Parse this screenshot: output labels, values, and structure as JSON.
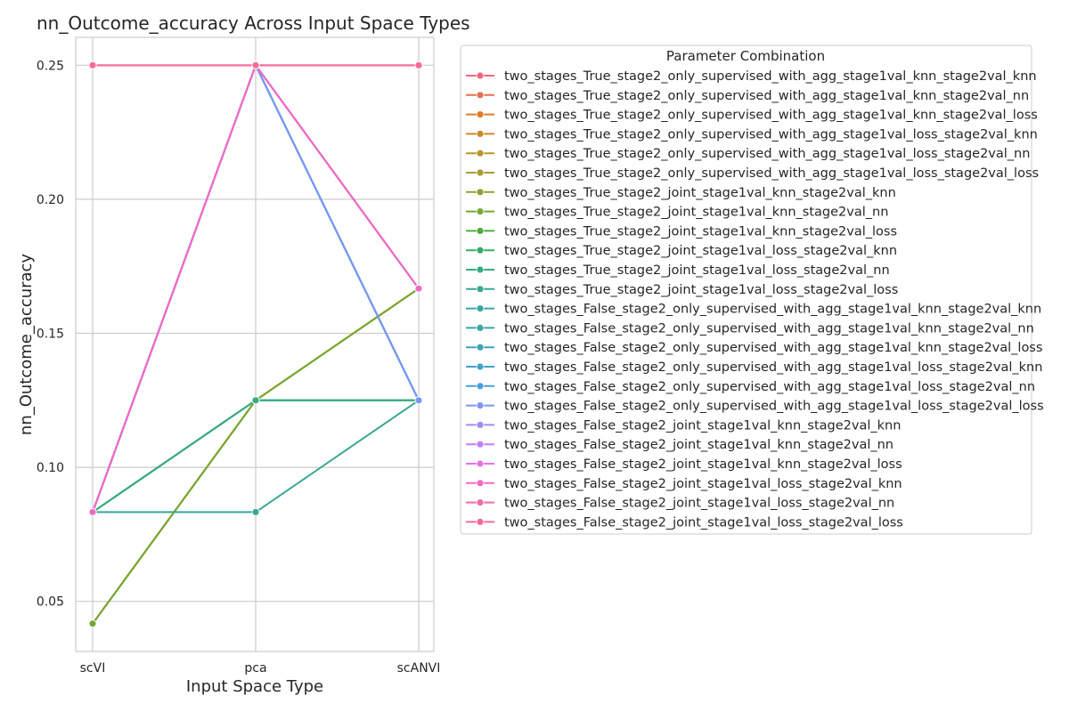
{
  "chart_data": {
    "type": "line",
    "title": "nn_Outcome_accuracy Across Input Space Types",
    "xlabel": "Input Space Type",
    "ylabel": "nn_Outcome_accuracy",
    "categories": [
      "scVI",
      "pca",
      "scANVI"
    ],
    "yticks": [
      "0.05",
      "0.10",
      "0.15",
      "0.20",
      "0.25"
    ],
    "ylim": [
      0.0313,
      0.2604
    ],
    "grid": true,
    "legend": {
      "title": "Parameter Combination",
      "placement": "right"
    },
    "series": [
      {
        "name": "two_stages_True_stage2_only_supervised_with_agg_stage1val_knn_stage2val_knn",
        "color": "#f0677e",
        "values": [
          0.0833,
          0.25,
          0.1667
        ]
      },
      {
        "name": "two_stages_True_stage2_only_supervised_with_agg_stage1val_knn_stage2val_nn",
        "color": "#ea6e51",
        "values": [
          0.0833,
          0.25,
          0.1667
        ]
      },
      {
        "name": "two_stages_True_stage2_only_supervised_with_agg_stage1val_knn_stage2val_loss",
        "color": "#dc7c2b",
        "values": [
          0.0833,
          0.25,
          0.1667
        ]
      },
      {
        "name": "two_stages_True_stage2_only_supervised_with_agg_stage1val_loss_stage2val_knn",
        "color": "#c98a2a",
        "values": [
          0.0417,
          0.125,
          0.1667
        ]
      },
      {
        "name": "two_stages_True_stage2_only_supervised_with_agg_stage1val_loss_stage2val_nn",
        "color": "#b7952d",
        "values": [
          0.0417,
          0.125,
          0.1667
        ]
      },
      {
        "name": "two_stages_True_stage2_only_supervised_with_agg_stage1val_loss_stage2val_loss",
        "color": "#a59c32",
        "values": [
          0.0417,
          0.125,
          0.1667
        ]
      },
      {
        "name": "two_stages_True_stage2_joint_stage1val_knn_stage2val_knn",
        "color": "#90a231",
        "values": [
          0.0417,
          0.125,
          0.1667
        ]
      },
      {
        "name": "two_stages_True_stage2_joint_stage1val_knn_stage2val_nn",
        "color": "#76a833",
        "values": [
          0.0417,
          0.125,
          0.1667
        ]
      },
      {
        "name": "two_stages_True_stage2_joint_stage1val_knn_stage2val_loss",
        "color": "#4ead3b",
        "values": [
          0.0833,
          0.125,
          0.125
        ]
      },
      {
        "name": "two_stages_True_stage2_joint_stage1val_loss_stage2val_knn",
        "color": "#35ac6a",
        "values": [
          0.0833,
          0.125,
          0.125
        ]
      },
      {
        "name": "two_stages_True_stage2_joint_stage1val_loss_stage2val_nn",
        "color": "#36aa85",
        "values": [
          0.0833,
          0.125,
          0.125
        ]
      },
      {
        "name": "two_stages_True_stage2_joint_stage1val_loss_stage2val_loss",
        "color": "#38a895",
        "values": [
          0.0833,
          0.0833,
          0.125
        ]
      },
      {
        "name": "two_stages_False_stage2_only_supervised_with_agg_stage1val_knn_stage2val_knn",
        "color": "#39a7a2",
        "values": [
          0.0833,
          0.25,
          0.125
        ]
      },
      {
        "name": "two_stages_False_stage2_only_supervised_with_agg_stage1val_knn_stage2val_nn",
        "color": "#3ba5ad",
        "values": [
          0.0833,
          0.25,
          0.125
        ]
      },
      {
        "name": "two_stages_False_stage2_only_supervised_with_agg_stage1val_knn_stage2val_loss",
        "color": "#3da4ba",
        "values": [
          0.0833,
          0.25,
          0.125
        ]
      },
      {
        "name": "two_stages_False_stage2_only_supervised_with_agg_stage1val_loss_stage2val_knn",
        "color": "#41a2c9",
        "values": [
          0.0833,
          0.25,
          0.125
        ]
      },
      {
        "name": "two_stages_False_stage2_only_supervised_with_agg_stage1val_loss_stage2val_nn",
        "color": "#4a9fde",
        "values": [
          0.0833,
          0.25,
          0.125
        ]
      },
      {
        "name": "two_stages_False_stage2_only_supervised_with_agg_stage1val_loss_stage2val_loss",
        "color": "#7a97f2",
        "values": [
          0.0833,
          0.25,
          0.125
        ]
      },
      {
        "name": "two_stages_False_stage2_joint_stage1val_knn_stage2val_knn",
        "color": "#a48cf4",
        "values": [
          0.0833,
          0.25,
          0.1667
        ]
      },
      {
        "name": "two_stages_False_stage2_joint_stage1val_knn_stage2val_nn",
        "color": "#c47ff3",
        "values": [
          0.0833,
          0.25,
          0.1667
        ]
      },
      {
        "name": "two_stages_False_stage2_joint_stage1val_knn_stage2val_loss",
        "color": "#e571e6",
        "values": [
          0.0833,
          0.25,
          0.1667
        ]
      },
      {
        "name": "two_stages_False_stage2_joint_stage1val_loss_stage2val_knn",
        "color": "#f06ac6",
        "values": [
          0.0833,
          0.25,
          0.1667
        ]
      },
      {
        "name": "two_stages_False_stage2_joint_stage1val_loss_stage2val_nn",
        "color": "#f26bac",
        "values": [
          0.25,
          0.25,
          0.25
        ]
      },
      {
        "name": "two_stages_False_stage2_joint_stage1val_loss_stage2val_loss",
        "color": "#f46c96",
        "values": [
          0.25,
          0.25,
          0.25
        ]
      }
    ]
  }
}
